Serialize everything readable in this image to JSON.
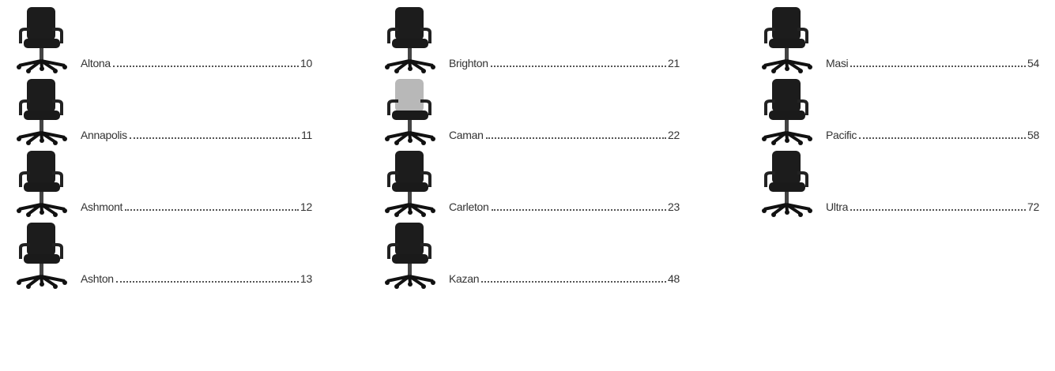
{
  "columns": [
    {
      "entries": [
        {
          "name": "Altona",
          "page": 10
        },
        {
          "name": "Annapolis",
          "page": 11
        },
        {
          "name": "Ashmont",
          "page": 12
        },
        {
          "name": "Ashton",
          "page": 13
        }
      ]
    },
    {
      "entries": [
        {
          "name": "Brighton",
          "page": 21
        },
        {
          "name": "Caman",
          "page": 22
        },
        {
          "name": "Carleton",
          "page": 23
        },
        {
          "name": "Kazan",
          "page": 48
        }
      ]
    },
    {
      "entries": [
        {
          "name": "Masi",
          "page": 54
        },
        {
          "name": "Pacific",
          "page": 58
        },
        {
          "name": "Ultra",
          "page": 72
        }
      ]
    }
  ]
}
